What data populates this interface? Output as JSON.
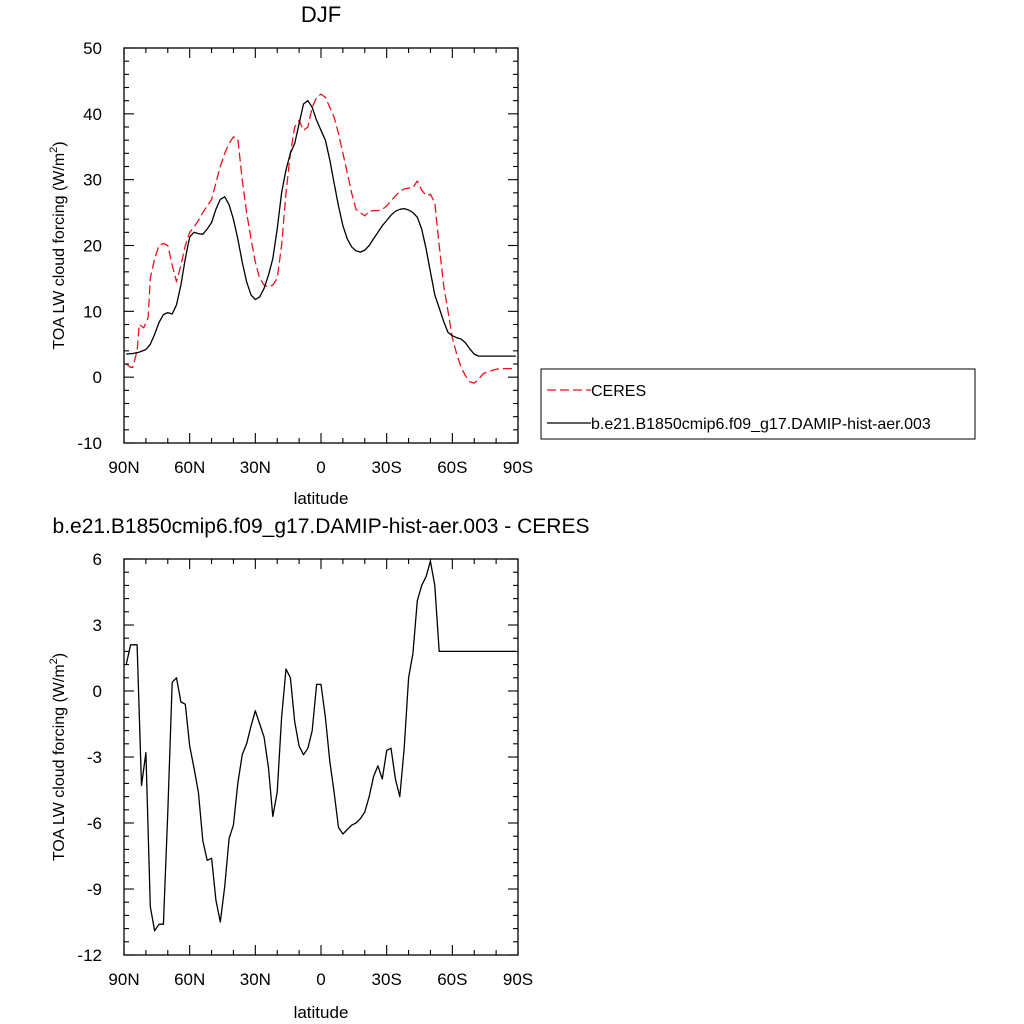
{
  "chart_data": [
    {
      "type": "line",
      "title": "DJF",
      "xlabel": "latitude",
      "ylabel_main": "TOA LW cloud forcing (W/m",
      "ylabel_sup": "2",
      "ylabel_end": ")",
      "xlim": [
        90,
        -90
      ],
      "ylim": [
        -10,
        50
      ],
      "x_ticks": [
        90,
        60,
        30,
        0,
        -30,
        -60,
        -90
      ],
      "x_tick_labels": [
        "90N",
        "60N",
        "30N",
        "0",
        "30S",
        "60S",
        "90S"
      ],
      "y_ticks": [
        -10,
        0,
        10,
        20,
        30,
        40,
        50
      ],
      "y_tick_labels": [
        "-10",
        "0",
        "10",
        "20",
        "30",
        "40",
        "50"
      ],
      "legend_position": "outside-right",
      "series": [
        {
          "name": "CERES",
          "color": "#e8141c",
          "dash": "dashed",
          "x": [
            89,
            87,
            86,
            84,
            83,
            81,
            79,
            78,
            76,
            74,
            72,
            70,
            68,
            66,
            64,
            62,
            60,
            58,
            56,
            54,
            52,
            50,
            48,
            46,
            44,
            42,
            40,
            38,
            36,
            34,
            32,
            30,
            28,
            26,
            24,
            22,
            20,
            18,
            16,
            14,
            12,
            10,
            8,
            6,
            4,
            2,
            0,
            -2,
            -4,
            -6,
            -8,
            -10,
            -12,
            -14,
            -16,
            -18,
            -20,
            -22,
            -24,
            -26,
            -28,
            -30,
            -32,
            -34,
            -36,
            -38,
            -40,
            -42,
            -44,
            -46,
            -48,
            -50,
            -52,
            -54,
            -56,
            -58,
            -60,
            -62,
            -64,
            -66,
            -68,
            -70,
            -72,
            -74,
            -76,
            -78,
            -80,
            -82,
            -84,
            -86,
            -88,
            -89
          ],
          "y": [
            2,
            1.5,
            1.5,
            4,
            8,
            7.5,
            9,
            15,
            18,
            20,
            20.3,
            20,
            17,
            14.5,
            17,
            20,
            22,
            22.8,
            23.8,
            25,
            26,
            27,
            29.5,
            32,
            34,
            35.5,
            36.5,
            36.2,
            30,
            25,
            21,
            17.5,
            15,
            14,
            13.7,
            14,
            15,
            20,
            28,
            34,
            38,
            39,
            37.5,
            38,
            41,
            42.5,
            43,
            42.5,
            41,
            39.5,
            37,
            34,
            31,
            28,
            25.5,
            25,
            24.5,
            25.2,
            25.3,
            25.3,
            25.5,
            26,
            26.8,
            27.5,
            28.2,
            28.6,
            28.7,
            28.8,
            29.8,
            28.4,
            27.6,
            27.8,
            26.5,
            20,
            14,
            10,
            6,
            3.5,
            1.5,
            0.2,
            -0.7,
            -0.9,
            -0.3,
            0.5,
            0.8,
            1,
            1.2,
            1.3,
            1.3,
            1.3,
            1.3,
            1.3
          ]
        },
        {
          "name": "b.e21.B1850cmip6.f09_g17.DAMIP-hist-aer.003",
          "color": "#000000",
          "dash": "solid",
          "x": [
            89,
            86,
            83,
            80,
            78,
            76,
            74,
            72,
            70,
            68,
            66,
            64,
            62,
            60,
            58,
            56,
            54,
            52,
            50,
            48,
            46,
            44,
            42,
            40,
            38,
            36,
            34,
            32,
            30,
            28,
            26,
            24,
            22,
            20,
            18,
            16,
            14,
            12,
            10,
            8,
            6,
            4,
            2,
            0,
            -2,
            -4,
            -6,
            -8,
            -10,
            -12,
            -14,
            -16,
            -18,
            -20,
            -22,
            -24,
            -26,
            -28,
            -30,
            -32,
            -34,
            -36,
            -38,
            -40,
            -42,
            -44,
            -46,
            -48,
            -50,
            -52,
            -54,
            -56,
            -58,
            -60,
            -62,
            -64,
            -66,
            -68,
            -70,
            -72,
            -74,
            -76,
            -78,
            -80,
            -82,
            -84,
            -86,
            -88,
            -89
          ],
          "y": [
            3.5,
            3.6,
            3.8,
            4.2,
            5,
            6.5,
            8.3,
            9.5,
            9.8,
            9.6,
            11,
            14,
            18,
            21.3,
            22,
            21.8,
            21.7,
            22.5,
            23.5,
            25.5,
            27,
            27.4,
            26.2,
            24,
            21,
            17.5,
            14.5,
            12.5,
            11.8,
            12.2,
            13.5,
            15.5,
            18,
            22.5,
            28,
            31.5,
            34,
            35.5,
            38.5,
            41.5,
            42,
            41,
            39,
            37.5,
            36,
            33,
            29.5,
            26,
            23,
            21,
            19.8,
            19.2,
            19,
            19.3,
            20,
            21,
            22,
            23,
            23.8,
            24.6,
            25.2,
            25.5,
            25.6,
            25.4,
            25,
            24.3,
            22.5,
            19.5,
            16,
            12.5,
            10.5,
            8.5,
            6.8,
            6.3,
            6,
            5.8,
            5.2,
            4.3,
            3.5,
            3.2,
            3.2,
            3.2,
            3.2,
            3.2,
            3.2,
            3.2,
            3.2,
            3.2,
            3.2
          ]
        }
      ]
    },
    {
      "type": "line",
      "title": "b.e21.B1850cmip6.f09_g17.DAMIP-hist-aer.003 - CERES",
      "xlabel": "latitude",
      "ylabel_main": "TOA LW cloud forcing (W/m",
      "ylabel_sup": "2",
      "ylabel_end": ")",
      "xlim": [
        90,
        -90
      ],
      "ylim": [
        -12,
        6
      ],
      "x_ticks": [
        90,
        60,
        30,
        0,
        -30,
        -60,
        -90
      ],
      "x_tick_labels": [
        "90N",
        "60N",
        "30N",
        "0",
        "30S",
        "60S",
        "90S"
      ],
      "y_ticks": [
        -12,
        -9,
        -6,
        -3,
        0,
        3,
        6
      ],
      "y_tick_labels": [
        "-12",
        "-9",
        "-6",
        "-3",
        "0",
        "3",
        "6"
      ],
      "series": [
        {
          "color": "#000000",
          "dash": "solid",
          "x": [
            89,
            87,
            84,
            82,
            80,
            78,
            76,
            74,
            72,
            70,
            68,
            66,
            64,
            62,
            60,
            58,
            56,
            54,
            52,
            50,
            48,
            46,
            44,
            42,
            40,
            38,
            36,
            34,
            32,
            30,
            28,
            26,
            24,
            22,
            20,
            18,
            16,
            14,
            12,
            10,
            8,
            6,
            4,
            2,
            0,
            -2,
            -4,
            -6,
            -8,
            -10,
            -12,
            -14,
            -16,
            -18,
            -20,
            -22,
            -24,
            -26,
            -28,
            -30,
            -32,
            -34,
            -36,
            -38,
            -40,
            -42,
            -44,
            -46,
            -48,
            -50,
            -52,
            -54,
            -56,
            -58,
            -60,
            -62,
            -64,
            -66,
            -68,
            -70,
            -72,
            -74,
            -76,
            -78,
            -80,
            -82,
            -84,
            -86,
            -88,
            -89
          ],
          "y": [
            1.2,
            2.1,
            2.1,
            -4.3,
            -2.8,
            -9.8,
            -10.9,
            -10.6,
            -10.6,
            -5.5,
            0.4,
            0.6,
            -0.5,
            -0.6,
            -2.5,
            -3.5,
            -4.6,
            -6.8,
            -7.7,
            -7.6,
            -9.5,
            -10.5,
            -8.9,
            -6.7,
            -6.1,
            -4.2,
            -2.9,
            -2.4,
            -1.6,
            -0.9,
            -1.5,
            -2.1,
            -3.5,
            -5.7,
            -4.6,
            -1.2,
            1.0,
            0.6,
            -1.4,
            -2.5,
            -2.9,
            -2.6,
            -1.8,
            0.3,
            0.3,
            -1.2,
            -3.2,
            -4.6,
            -6.2,
            -6.5,
            -6.3,
            -6.1,
            -6.0,
            -5.8,
            -5.5,
            -4.8,
            -3.9,
            -3.4,
            -4.0,
            -2.7,
            -2.6,
            -4.0,
            -4.8,
            -2.6,
            0.6,
            1.7,
            4.1,
            4.8,
            5.2,
            5.9,
            4.8,
            1.8,
            1.8,
            1.8,
            1.8,
            1.8,
            1.8,
            1.8,
            1.8,
            1.8,
            1.8,
            1.8,
            1.8,
            1.8,
            1.8,
            1.8,
            1.8,
            1.8,
            1.8,
            1.8
          ]
        }
      ]
    }
  ]
}
